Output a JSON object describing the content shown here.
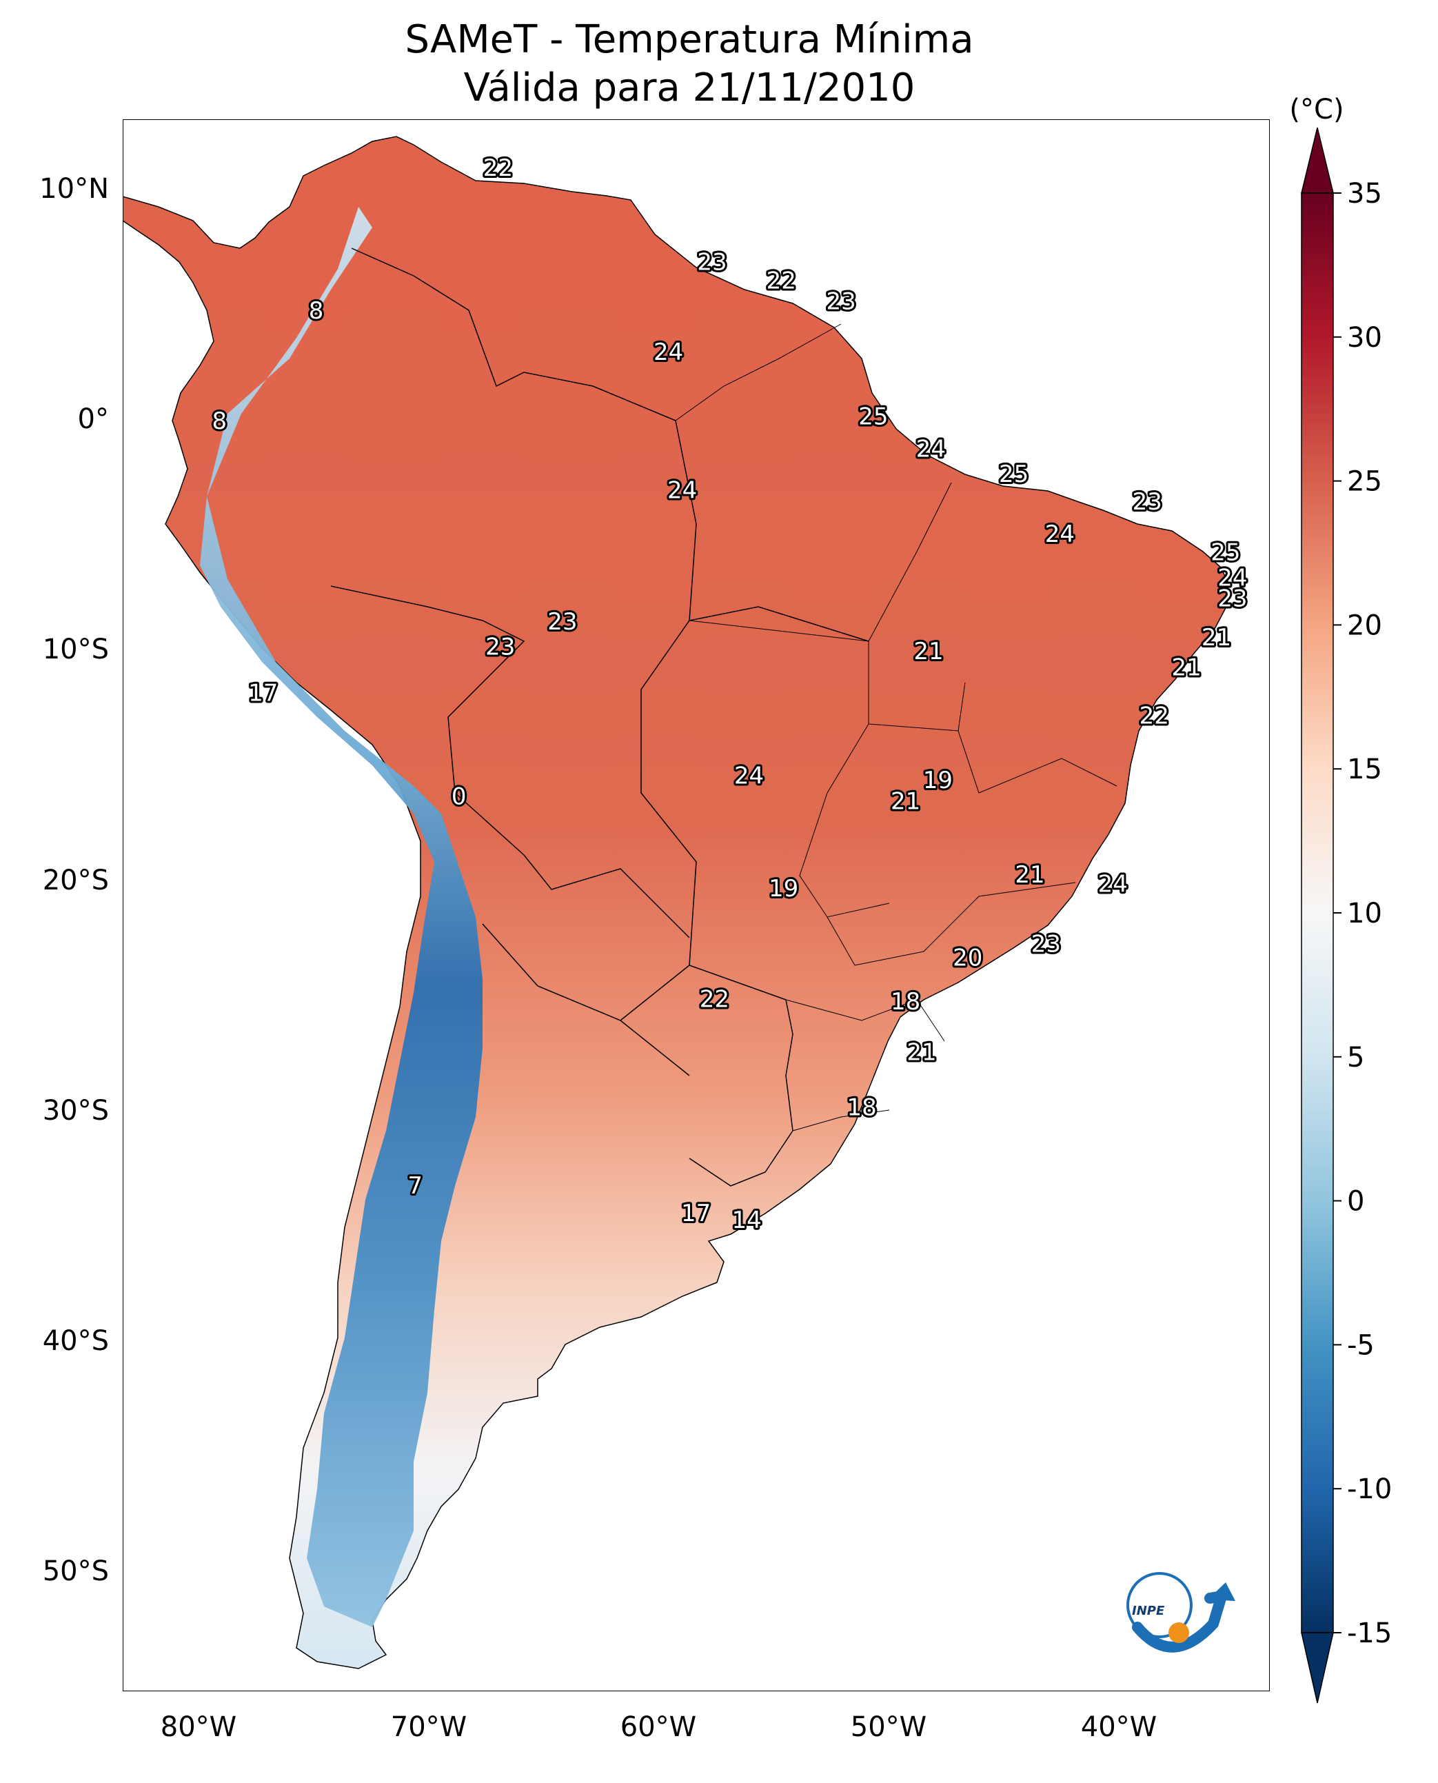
{
  "title": {
    "line1": "SAMeT - Temperatura Mínima",
    "line2": "Válida para 21/11/2010"
  },
  "colorbar": {
    "unit": "(°C)",
    "min": -15,
    "max": 35,
    "tick_labels": [
      "35",
      "30",
      "25",
      "20",
      "15",
      "10",
      "5",
      "0",
      "-5",
      "-10",
      "-15"
    ],
    "colors": [
      "#053061",
      "#2166ac",
      "#4393c3",
      "#92c5de",
      "#d1e5f0",
      "#f7f7f7",
      "#fddbc7",
      "#f4a582",
      "#d6604d",
      "#b2182b",
      "#67001f"
    ]
  },
  "axes": {
    "lat_labels": [
      "10°N",
      "0°",
      "10°S",
      "20°S",
      "30°S",
      "40°S",
      "50°S"
    ],
    "lon_labels": [
      "80°W",
      "70°W",
      "60°W",
      "50°W",
      "40°W"
    ]
  },
  "map": {
    "region": "South America",
    "field": "minimum temperature",
    "ocean_color": "#ffffff",
    "border_color": "#000000"
  },
  "station_labels": [
    {
      "t": "22",
      "lon": -67.0,
      "lat": 10.8
    },
    {
      "t": "23",
      "lon": -57.7,
      "lat": 6.7
    },
    {
      "t": "22",
      "lon": -54.7,
      "lat": 5.9
    },
    {
      "t": "23",
      "lon": -52.1,
      "lat": 5.0
    },
    {
      "t": "8",
      "lon": -74.9,
      "lat": 4.6
    },
    {
      "t": "24",
      "lon": -59.6,
      "lat": 2.8
    },
    {
      "t": "8",
      "lon": -79.1,
      "lat": -0.2
    },
    {
      "t": "25",
      "lon": -50.7,
      "lat": 0.0
    },
    {
      "t": "24",
      "lon": -48.2,
      "lat": -1.4
    },
    {
      "t": "25",
      "lon": -44.6,
      "lat": -2.5
    },
    {
      "t": "24",
      "lon": -59.0,
      "lat": -3.2
    },
    {
      "t": "23",
      "lon": -38.8,
      "lat": -3.7
    },
    {
      "t": "24",
      "lon": -42.6,
      "lat": -5.1
    },
    {
      "t": "25",
      "lon": -35.4,
      "lat": -5.9
    },
    {
      "t": "24",
      "lon": -35.1,
      "lat": -7.0
    },
    {
      "t": "23",
      "lon": -35.1,
      "lat": -7.9
    },
    {
      "t": "23",
      "lon": -64.2,
      "lat": -8.9
    },
    {
      "t": "21",
      "lon": -35.8,
      "lat": -9.6
    },
    {
      "t": "23",
      "lon": -66.9,
      "lat": -10.0
    },
    {
      "t": "21",
      "lon": -48.3,
      "lat": -10.2
    },
    {
      "t": "21",
      "lon": -37.1,
      "lat": -10.9
    },
    {
      "t": "17",
      "lon": -77.2,
      "lat": -12.0
    },
    {
      "t": "22",
      "lon": -38.5,
      "lat": -13.0
    },
    {
      "t": "24",
      "lon": -56.1,
      "lat": -15.6
    },
    {
      "t": "19",
      "lon": -47.9,
      "lat": -15.8
    },
    {
      "t": "21",
      "lon": -49.3,
      "lat": -16.7
    },
    {
      "t": "0",
      "lon": -68.7,
      "lat": -16.5
    },
    {
      "t": "21",
      "lon": -43.9,
      "lat": -19.9
    },
    {
      "t": "24",
      "lon": -40.3,
      "lat": -20.3
    },
    {
      "t": "19",
      "lon": -54.6,
      "lat": -20.5
    },
    {
      "t": "23",
      "lon": -43.2,
      "lat": -22.9
    },
    {
      "t": "20",
      "lon": -46.6,
      "lat": -23.5
    },
    {
      "t": "22",
      "lon": -57.6,
      "lat": -25.3
    },
    {
      "t": "18",
      "lon": -49.3,
      "lat": -25.4
    },
    {
      "t": "21",
      "lon": -48.6,
      "lat": -27.6
    },
    {
      "t": "18",
      "lon": -51.2,
      "lat": -30.0
    },
    {
      "t": "7",
      "lon": -70.6,
      "lat": -33.4
    },
    {
      "t": "17",
      "lon": -58.4,
      "lat": -34.6
    },
    {
      "t": "14",
      "lon": -56.2,
      "lat": -34.9
    }
  ]
}
